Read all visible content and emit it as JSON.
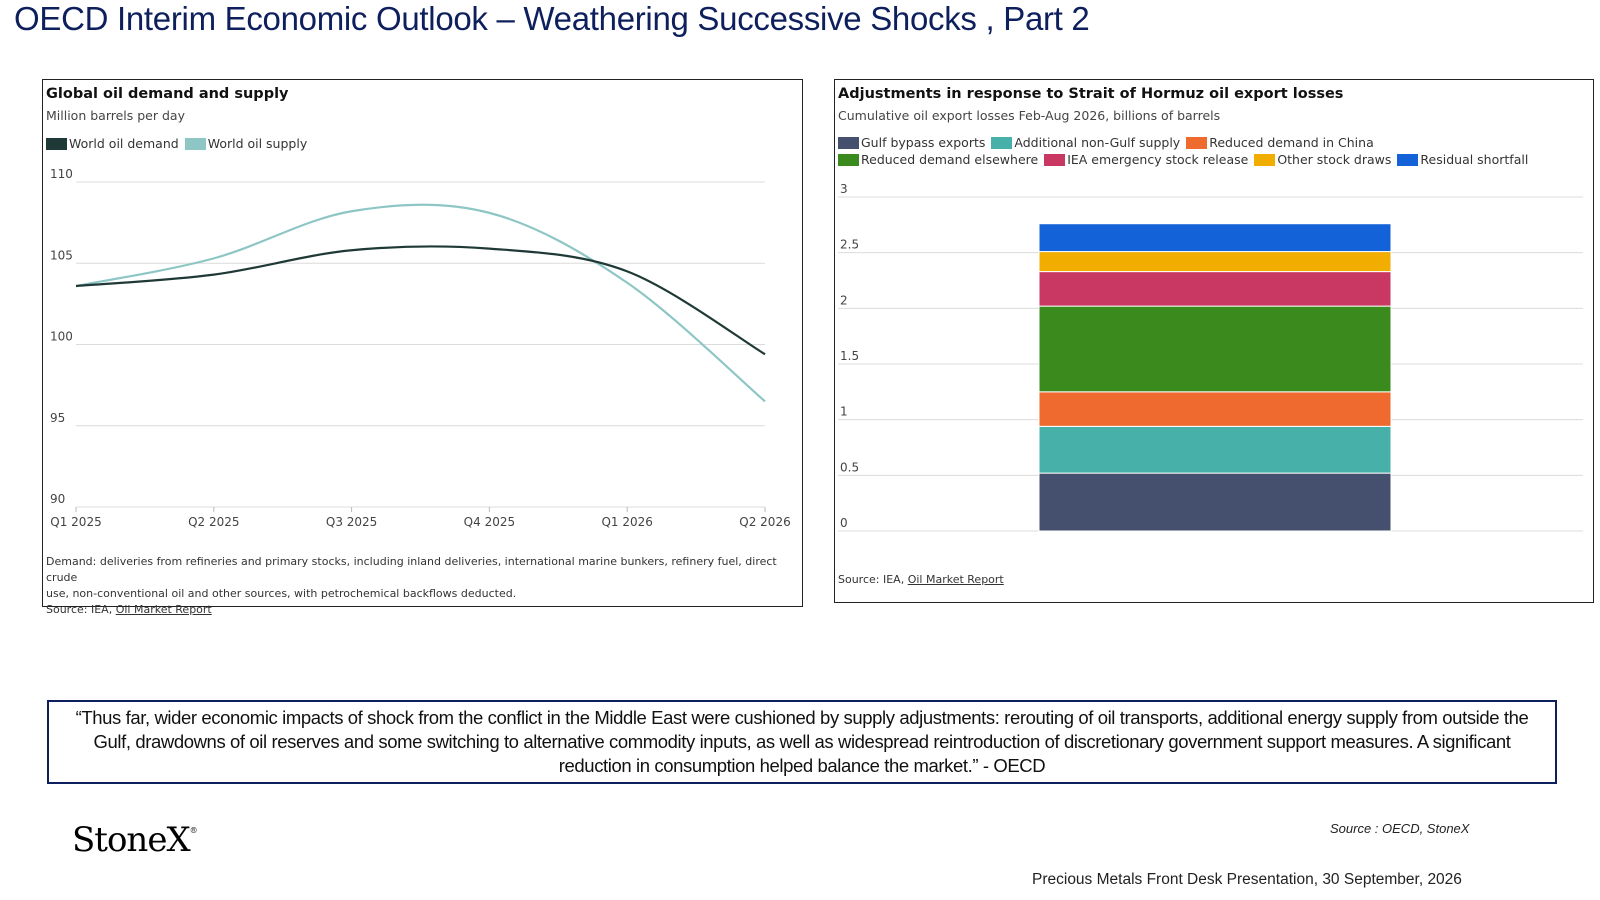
{
  "page_title": "OECD Interim Economic Outlook – Weathering Successive Shocks , Part 2",
  "left_chart": {
    "title": "Global oil demand and supply",
    "subtitle": "Million barrels per day",
    "note_line1": "Demand: deliveries from refineries and primary stocks, including inland deliveries, international marine bunkers, refinery fuel, direct crude",
    "note_line2": "use, non-conventional oil and other sources, with petrochemical backflows deducted.",
    "source_label": "Source: IEA, ",
    "source_link": "Oil Market Report"
  },
  "right_chart": {
    "title": "Adjustments in response to Strait of Hormuz oil export losses",
    "subtitle": "Cumulative oil export losses Feb-Aug 2026, billions of barrels",
    "source_label": "Source: IEA, ",
    "source_link": "Oil Market Report"
  },
  "chart_data": [
    {
      "type": "line",
      "title": "Global oil demand and supply",
      "subtitle": "Million barrels per day",
      "x": [
        "Q1 2025",
        "Q2 2025",
        "Q3 2025",
        "Q4 2025",
        "Q1 2026",
        "Q2 2026"
      ],
      "ylim": [
        90,
        110
      ],
      "yticks": [
        90,
        95,
        100,
        105,
        110
      ],
      "grid": true,
      "legend_position": "top-left",
      "series": [
        {
          "name": "World oil demand",
          "color": "#1f3a36",
          "values": [
            103.6,
            104.3,
            105.8,
            105.9,
            104.5,
            99.4
          ]
        },
        {
          "name": "World oil supply",
          "color": "#8ec6c5",
          "values": [
            103.6,
            105.3,
            108.2,
            108.1,
            103.8,
            96.5
          ]
        }
      ]
    },
    {
      "type": "bar",
      "stacked": true,
      "title": "Adjustments in response to Strait of Hormuz oil export losses",
      "subtitle": "Cumulative oil export losses Feb-Aug 2026, billions of barrels",
      "ylim": [
        0,
        3
      ],
      "yticks": [
        "0",
        "0.5",
        "1",
        "1.5",
        "2",
        "2.5",
        "3"
      ],
      "grid": true,
      "legend_position": "top",
      "categories": [
        ""
      ],
      "series": [
        {
          "name": "Gulf bypass exports",
          "color": "#454f6e",
          "values": [
            0.52
          ]
        },
        {
          "name": "Additional non-Gulf supply",
          "color": "#47b0a8",
          "values": [
            0.42
          ]
        },
        {
          "name": "Reduced demand in China",
          "color": "#ee6a2f",
          "values": [
            0.31
          ]
        },
        {
          "name": "Reduced demand elsewhere",
          "color": "#3a8a1d",
          "values": [
            0.77
          ]
        },
        {
          "name": "IEA emergency stock release",
          "color": "#c93763",
          "values": [
            0.31
          ]
        },
        {
          "name": "Other stock draws",
          "color": "#f1ad00",
          "values": [
            0.18
          ]
        },
        {
          "name": "Residual shortfall",
          "color": "#1362d8",
          "values": [
            0.25
          ]
        }
      ]
    }
  ],
  "quote": "“Thus far, wider economic impacts of shock from the conflict in the Middle East were cushioned by supply adjustments: rerouting of oil transports, additional energy supply from outside the Gulf, drawdowns of oil reserves and some switching to alternative commodity inputs, as well as widespread reintroduction of discretionary government support measures. A significant reduction in consumption helped balance the market.” - OECD",
  "logo_text": "StoneX",
  "logo_mark": "®",
  "source_text": "Source : OECD, StoneX",
  "footer_text": "Precious Metals Front Desk Presentation, 30 September, 2026"
}
